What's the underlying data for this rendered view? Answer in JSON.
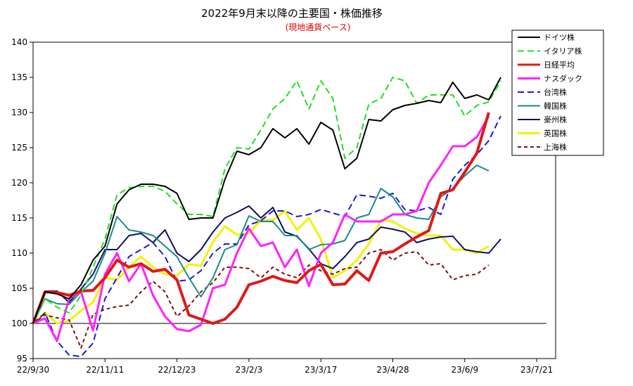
{
  "chart_data": {
    "type": "line",
    "title": "2022年9月末以降の主要国・株価推移",
    "subtitle": "(現地通貨ベース)",
    "ylim": [
      95,
      140
    ],
    "yticks": [
      95,
      100,
      105,
      110,
      115,
      120,
      125,
      130,
      135,
      140
    ],
    "x_ticks": [
      "22/9/30",
      "22/11/11",
      "22/12/23",
      "23/2/3",
      "23/3/17",
      "23/4/28",
      "23/6/9",
      "23/7/21"
    ],
    "baseline": 100,
    "legend_position": "top-right",
    "grid": false,
    "x_count": 43,
    "series": [
      {
        "name": "ドイツ株",
        "color": "#000000",
        "dash": "",
        "width": 2,
        "values": [
          100,
          104.5,
          104.2,
          103.5,
          105.5,
          109,
          111,
          117,
          119,
          119.8,
          119.8,
          119.5,
          118.5,
          114.8,
          115,
          115,
          120.5,
          124.5,
          124,
          125,
          127.7,
          126.4,
          127.7,
          125.5,
          128.6,
          127.5,
          122,
          123.5,
          129,
          128.8,
          130.4,
          131,
          131.3,
          131.7,
          131.4,
          134.3,
          132,
          132.5,
          131.8,
          135
        ]
      },
      {
        "name": "イタリア株",
        "color": "#22dd22",
        "dash": "9,5",
        "width": 2,
        "values": [
          100,
          103.5,
          102.3,
          101.5,
          104,
          108,
          112,
          118.3,
          119.3,
          119.5,
          119.5,
          118.8,
          117,
          115.5,
          115.5,
          115.2,
          122,
          125,
          124.8,
          127.5,
          130.5,
          132,
          134.5,
          130.5,
          134.5,
          132,
          123.5,
          125,
          131.2,
          132,
          135,
          134.5,
          131.3,
          132.5,
          132.5,
          132.5,
          129.5,
          131,
          131.5,
          134.5
        ]
      },
      {
        "name": "日経平均",
        "color": "#e01818",
        "dash": "",
        "width": 4,
        "values": [
          100,
          104.5,
          104.4,
          104,
          104.6,
          104.7,
          106.5,
          109,
          108,
          108.5,
          107.4,
          107.7,
          106.2,
          101.2,
          100.6,
          100,
          100.6,
          102.3,
          105.5,
          106,
          106.7,
          106.1,
          105.8,
          107.5,
          108.4,
          105.5,
          105.6,
          107.5,
          106.1,
          110,
          110.2,
          111.3,
          112.3,
          113.2,
          118.5,
          119,
          121.5,
          124.2,
          130
        ]
      },
      {
        "name": "ナスダック",
        "color": "#ff22ff",
        "dash": "",
        "width": 3,
        "values": [
          100,
          100.7,
          97.5,
          103.5,
          104.5,
          99,
          107,
          110,
          106,
          108.5,
          104,
          101,
          99.2,
          98.9,
          99.8,
          105,
          105.5,
          110,
          113.5,
          111,
          111.5,
          108,
          110.5,
          105.3,
          110,
          111.5,
          115.5,
          114.5,
          114.5,
          114.5,
          115.5,
          115.5,
          116,
          120,
          122.5,
          125.2,
          125.2,
          126.5,
          129.5
        ]
      },
      {
        "name": "台湾株",
        "color": "#1a1ad0",
        "dash": "9,5",
        "width": 2,
        "values": [
          100,
          101.5,
          97.5,
          95.5,
          95.3,
          97.2,
          103.5,
          106.5,
          109.5,
          110.5,
          111.5,
          109.5,
          106,
          106.2,
          107.5,
          110,
          111.3,
          111.3,
          114,
          114.6,
          116,
          116,
          115.2,
          115.5,
          116.2,
          115.7,
          115.2,
          118.3,
          118.1,
          117.8,
          118.5,
          116.2,
          116,
          116.5,
          115.5,
          120.5,
          122.5,
          124,
          126,
          129.5
        ]
      },
      {
        "name": "韓国株",
        "color": "#1a8a8a",
        "dash": "",
        "width": 2,
        "values": [
          100,
          103.5,
          102.8,
          102.7,
          104.5,
          106,
          110,
          115.2,
          113.3,
          113,
          112.5,
          111,
          109.5,
          106.5,
          103.8,
          106.5,
          110.5,
          111.2,
          115.3,
          114.5,
          114.5,
          112.5,
          112.5,
          110.5,
          111.2,
          111.3,
          111.8,
          115,
          115.5,
          119.2,
          118,
          115.5,
          115,
          114.8,
          118,
          119.2,
          121,
          122.5,
          121.7
        ]
      },
      {
        "name": "豪州株",
        "color": "#101060",
        "dash": "",
        "width": 2,
        "values": [
          100,
          104.6,
          104.6,
          103,
          104.9,
          107,
          110.5,
          110.5,
          112.5,
          112.8,
          111.5,
          113.3,
          110,
          108.8,
          110.5,
          113,
          115,
          115.8,
          116.7,
          115,
          116.5,
          113,
          112.4,
          110.6,
          108.5,
          107.8,
          109.5,
          111.5,
          112,
          113.7,
          113.4,
          113,
          111.5,
          112,
          112.3,
          112.4,
          110.5,
          110.2,
          110,
          112
        ]
      },
      {
        "name": "英国株",
        "color": "#f2f200",
        "dash": "",
        "width": 3,
        "values": [
          100,
          101.5,
          100,
          100.4,
          101.8,
          103,
          106.5,
          106.2,
          108,
          109.5,
          108,
          107,
          106.8,
          108.4,
          108.2,
          111.6,
          113.8,
          112.6,
          112.8,
          114.7,
          114.7,
          116,
          113.3,
          115,
          112,
          106.5,
          107.5,
          109,
          111.3,
          114.7,
          114.5,
          113.5,
          112.8,
          112.5,
          112.5,
          110.5,
          110.5,
          110,
          111
        ]
      },
      {
        "name": "上海株",
        "color": "#7a1010",
        "dash": "5,4",
        "width": 2,
        "values": [
          100,
          101.2,
          100.8,
          100.5,
          96.5,
          101.3,
          102,
          102.4,
          102.6,
          104.5,
          106,
          104.5,
          101,
          102.5,
          104.5,
          105.8,
          108,
          108,
          107.8,
          106.5,
          108,
          107,
          106.5,
          108.3,
          107.5,
          107,
          107.8,
          108,
          110,
          110.5,
          109,
          110,
          110.2,
          108.3,
          108.5,
          106.2,
          106.8,
          107,
          108.3
        ]
      }
    ]
  }
}
